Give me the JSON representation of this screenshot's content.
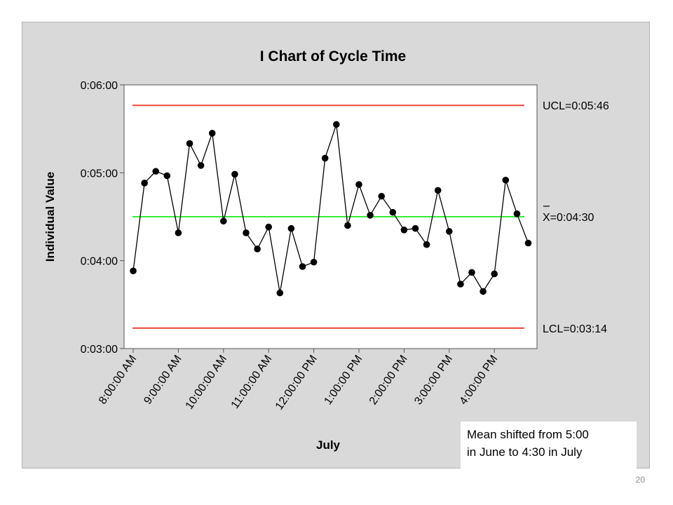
{
  "chart_data": {
    "type": "line",
    "title": "I Chart of Cycle Time",
    "xlabel": "July",
    "ylabel": "Individual Value",
    "y_unit": "seconds",
    "ylim": [
      180,
      360
    ],
    "y_ticks": [
      {
        "value": 180,
        "label": "0:03:00"
      },
      {
        "value": 240,
        "label": "0:04:00"
      },
      {
        "value": 300,
        "label": "0:05:00"
      },
      {
        "value": 360,
        "label": "0:06:00"
      }
    ],
    "x_ticks": [
      {
        "index": 1,
        "label": "8:00:00 AM"
      },
      {
        "index": 5,
        "label": "9:00:00 AM"
      },
      {
        "index": 9,
        "label": "10:00:00 AM"
      },
      {
        "index": 13,
        "label": "11:00:00 AM"
      },
      {
        "index": 17,
        "label": "12:00:00 PM"
      },
      {
        "index": 21,
        "label": "1:00:00 PM"
      },
      {
        "index": 25,
        "label": "2:00:00 PM"
      },
      {
        "index": 29,
        "label": "3:00:00 PM"
      },
      {
        "index": 33,
        "label": "4:00:00 PM"
      }
    ],
    "series": [
      {
        "values": [
          233,
          293,
          301,
          298,
          259,
          320,
          305,
          327,
          267,
          299,
          259,
          248,
          263,
          218,
          262,
          236,
          239,
          310,
          333,
          264,
          292,
          271,
          284,
          273,
          261,
          262,
          251,
          288,
          260,
          224,
          232,
          219,
          231,
          295,
          272,
          252
        ],
        "color": "#000000"
      }
    ],
    "control_lines": [
      {
        "id": "ucl",
        "label": "UCL=0:05:46",
        "value": 346,
        "color": "#e8473a"
      },
      {
        "id": "mean",
        "label_symbol": "X",
        "label_rest": "=0:04:30",
        "value": 270,
        "color": "#33ee33"
      },
      {
        "id": "lcl",
        "label": "LCL=0:03:14",
        "value": 194,
        "color": "#e8473a"
      }
    ],
    "grid": false,
    "legend": "none"
  },
  "annotation": {
    "line1": "Mean shifted from 5:00",
    "line2": "in June to 4:30 in July"
  },
  "page_number": "20"
}
